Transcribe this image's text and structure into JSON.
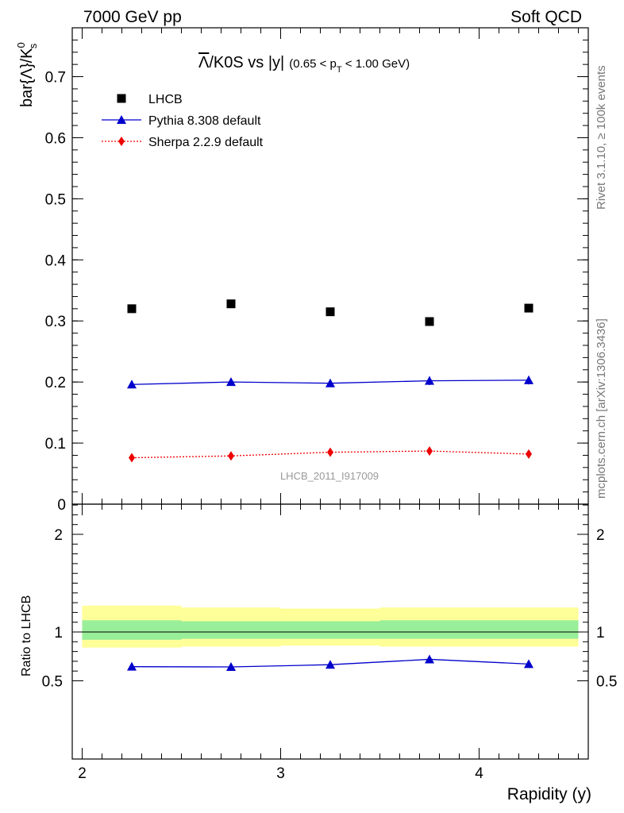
{
  "header": {
    "left": "7000 GeV pp",
    "right": "Soft QCD"
  },
  "side_labels": {
    "rivet": "Rivet 3.1.10, ≥ 100k events",
    "mcplots": "mcplots.cern.ch [arXiv:1306.3436]"
  },
  "watermark": "LHCB_2011_I917009",
  "title": {
    "lambda_symbol": "Λ",
    "main": "/K0S vs |y|",
    "cut_prefix": "(0.65 < p",
    "cut_sub": "T",
    "cut_suffix": " < 1.00 GeV)"
  },
  "top_ylabel": {
    "main": "bar{Λ}/K",
    "sup": "0",
    "sub": "s"
  },
  "bottom_ylabel": "Ratio to LHCB",
  "xlabel": "Rapidity (y)",
  "legend": [
    {
      "label": "LHCB",
      "color": "#000000",
      "marker": "square",
      "line": "none"
    },
    {
      "label": "Pythia 8.308 default",
      "color": "#0000cc",
      "marker": "triangle",
      "line": "solid"
    },
    {
      "label": "Sherpa 2.2.9 default",
      "color": "#ee0000",
      "marker": "diamond",
      "line": "dotted"
    }
  ],
  "chart_data": [
    {
      "type": "scatter",
      "panel": "main",
      "x": [
        2.25,
        2.75,
        3.25,
        3.75,
        4.25
      ],
      "xlim": [
        1.95,
        4.55
      ],
      "ylim": [
        0,
        0.78
      ],
      "yticks": [
        "0",
        "0.1",
        "0.2",
        "0.3",
        "0.4",
        "0.5",
        "0.6",
        "0.7"
      ],
      "xticks": [
        "2",
        "3",
        "4"
      ],
      "series": [
        {
          "name": "LHCB",
          "values": [
            0.32,
            0.328,
            0.315,
            0.299,
            0.321
          ]
        },
        {
          "name": "Pythia 8.308 default",
          "values": [
            0.196,
            0.2,
            0.198,
            0.202,
            0.203
          ],
          "err": [
            0.006,
            0.006,
            0.006,
            0.007,
            0.007
          ]
        },
        {
          "name": "Sherpa 2.2.9 default",
          "values": [
            0.076,
            0.079,
            0.085,
            0.087,
            0.082
          ],
          "err": [
            0.003,
            0.003,
            0.003,
            0.003,
            0.003
          ]
        }
      ]
    },
    {
      "type": "scatter",
      "panel": "ratio",
      "x": [
        2.25,
        2.75,
        3.25,
        3.75,
        4.25
      ],
      "bin_edges": [
        2.0,
        2.5,
        3.0,
        3.5,
        4.0,
        4.5
      ],
      "ylim": [
        0.4,
        2.4
      ],
      "yticks": [
        "0.5",
        "1",
        "2"
      ],
      "band_stat": [
        [
          0.92,
          1.12
        ],
        [
          0.93,
          1.11
        ],
        [
          0.93,
          1.11
        ],
        [
          0.93,
          1.12
        ],
        [
          0.93,
          1.12
        ]
      ],
      "band_total": [
        [
          0.84,
          1.27
        ],
        [
          0.85,
          1.25
        ],
        [
          0.86,
          1.24
        ],
        [
          0.85,
          1.25
        ],
        [
          0.85,
          1.25
        ]
      ],
      "series": [
        {
          "name": "Pythia 8.308 default",
          "values": [
            0.645,
            0.642,
            0.665,
            0.72,
            0.672
          ],
          "err": [
            0.025,
            0.025,
            0.025,
            0.028,
            0.028
          ]
        }
      ]
    }
  ]
}
